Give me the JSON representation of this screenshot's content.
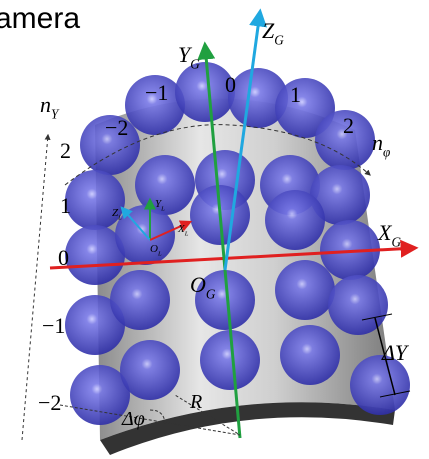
{
  "header": {
    "title": "amera"
  },
  "axes": {
    "z_g": {
      "main": "Z",
      "sub": "G"
    },
    "y_g": {
      "main": "Y",
      "sub": "G"
    },
    "x_g": {
      "main": "X",
      "sub": "G"
    },
    "o_g": {
      "main": "O",
      "sub": "G"
    },
    "n_y": {
      "main": "n",
      "sub": "Y"
    },
    "n_phi": {
      "main": "n",
      "sub": "φ"
    },
    "z_l": {
      "main": "Z",
      "sub": "L"
    },
    "y_l": {
      "main": "Y",
      "sub": "L"
    },
    "x_l": {
      "main": "X",
      "sub": "L"
    },
    "o_l": {
      "main": "O",
      "sub": "L"
    }
  },
  "top_labels": [
    "−2",
    "−1",
    "0",
    "1",
    "2"
  ],
  "left_labels": [
    "2",
    "1",
    "0",
    "−1",
    "−2"
  ],
  "dimensions": {
    "delta_y": "ΔY",
    "delta_phi": "Δφ",
    "radius": "R"
  }
}
